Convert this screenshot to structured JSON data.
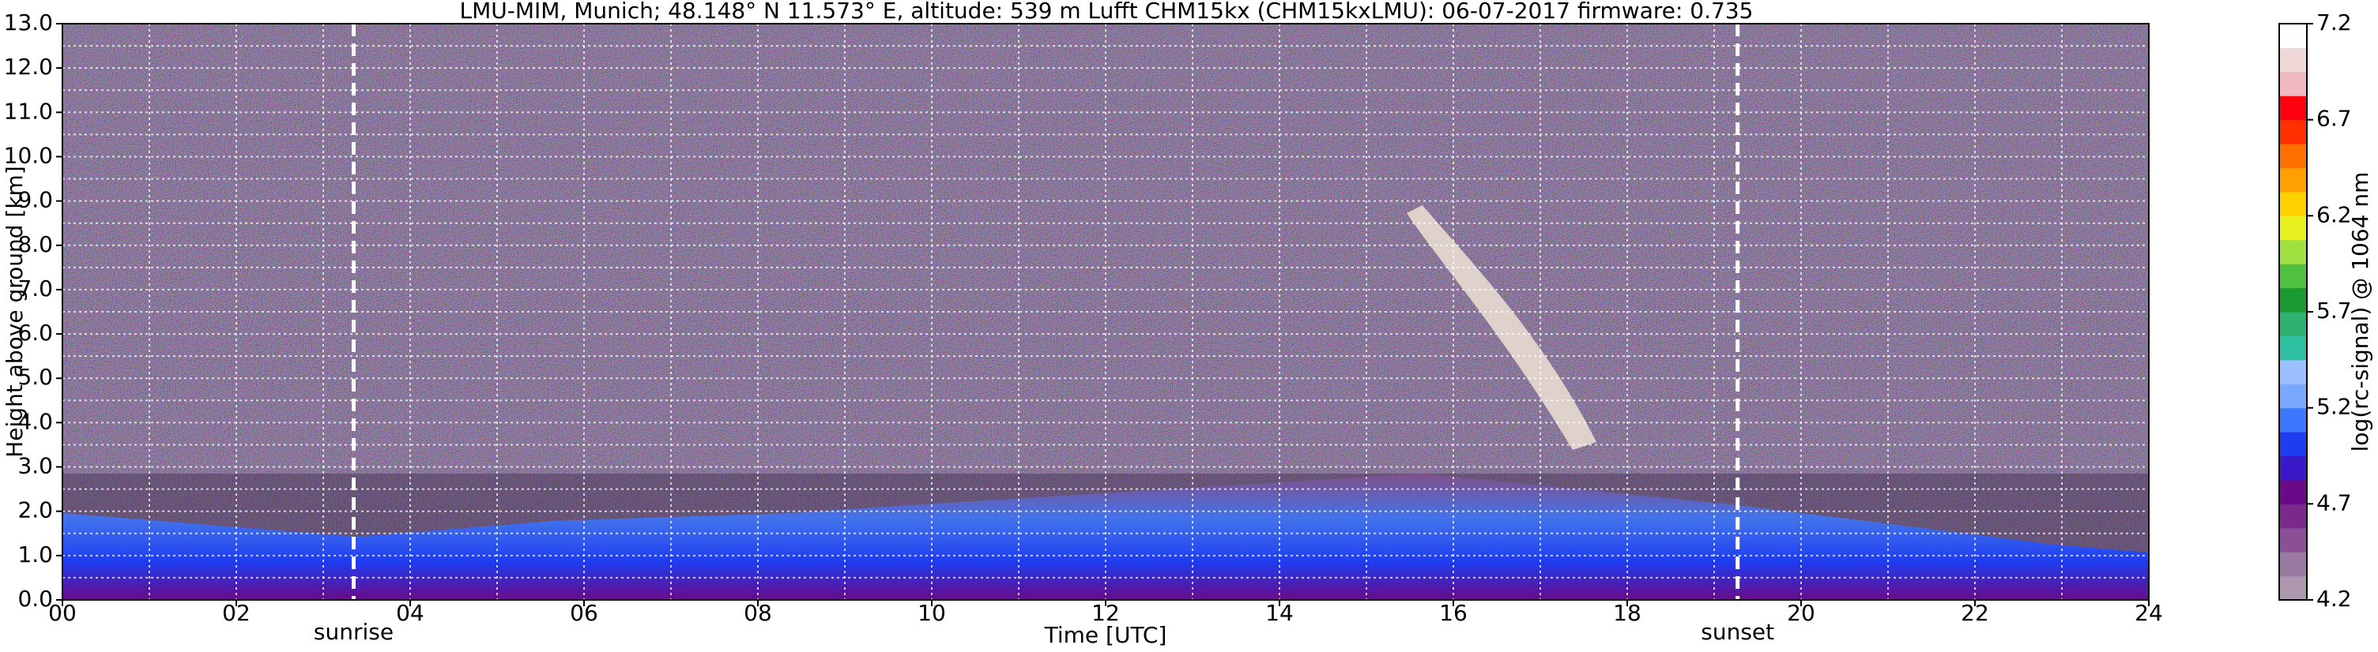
{
  "chart_data": {
    "type": "heatmap",
    "title": "LMU-MIM, Munich; 48.148° N 11.573° E, altitude: 539 m    Lufft CHM15kx (CHM15kxLMU): 06-07-2017    firmware: 0.735",
    "xlabel": "Time [UTC]",
    "ylabel": "Height above ground [km]",
    "colorbar_label": "log(rc-signal) @ 1064 nm",
    "xlim": [
      0,
      24
    ],
    "xticks": [
      {
        "value": 0,
        "label": "00"
      },
      {
        "value": 2,
        "label": "02"
      },
      {
        "value": 4,
        "label": "04"
      },
      {
        "value": 6,
        "label": "06"
      },
      {
        "value": 8,
        "label": "08"
      },
      {
        "value": 10,
        "label": "10"
      },
      {
        "value": 12,
        "label": "12"
      },
      {
        "value": 14,
        "label": "14"
      },
      {
        "value": 16,
        "label": "16"
      },
      {
        "value": 18,
        "label": "18"
      },
      {
        "value": 20,
        "label": "20"
      },
      {
        "value": 22,
        "label": "22"
      },
      {
        "value": 24,
        "label": "24"
      }
    ],
    "xminorticks": [
      1,
      3,
      5,
      7,
      9,
      11,
      13,
      15,
      17,
      19,
      21,
      23
    ],
    "ylim": [
      0,
      13
    ],
    "yticks": [
      {
        "value": 0,
        "label": "0.0"
      },
      {
        "value": 1,
        "label": "1.0"
      },
      {
        "value": 2,
        "label": "2.0"
      },
      {
        "value": 3,
        "label": "3.0"
      },
      {
        "value": 4,
        "label": "4.0"
      },
      {
        "value": 5,
        "label": "5.0"
      },
      {
        "value": 6,
        "label": "6.0"
      },
      {
        "value": 7,
        "label": "7.0"
      },
      {
        "value": 8,
        "label": "8.0"
      },
      {
        "value": 9,
        "label": "9.0"
      },
      {
        "value": 10,
        "label": "10.0"
      },
      {
        "value": 11,
        "label": "11.0"
      },
      {
        "value": 12,
        "label": "12.0"
      },
      {
        "value": 13,
        "label": "13.0"
      }
    ],
    "yminorticks": [
      0.5,
      1.5,
      2.5,
      3.5,
      4.5,
      5.5,
      6.5,
      7.5,
      8.5,
      9.5,
      10.5,
      11.5,
      12.5
    ],
    "grid": true,
    "clim": [
      4.2,
      7.2
    ],
    "cticks": [
      4.2,
      4.7,
      5.2,
      5.7,
      6.2,
      6.7,
      7.2
    ],
    "colormap": [
      "#ad97ae",
      "#9a7aa0",
      "#8a4f95",
      "#7a2a8a",
      "#6a0a88",
      "#3a1ac8",
      "#1e3cf0",
      "#3c78ff",
      "#7aa8ff",
      "#9cc0ff",
      "#2ec0a0",
      "#30b070",
      "#1a9a30",
      "#50c040",
      "#a0e040",
      "#e8f020",
      "#ffd000",
      "#ffa000",
      "#ff7000",
      "#ff3000",
      "#ff0010",
      "#f0b8c0",
      "#f0d8d8",
      "#ffffff"
    ],
    "annotations": [
      {
        "text": "sunrise",
        "x": 3.35
      },
      {
        "text": "sunset",
        "x": 19.27
      }
    ]
  }
}
